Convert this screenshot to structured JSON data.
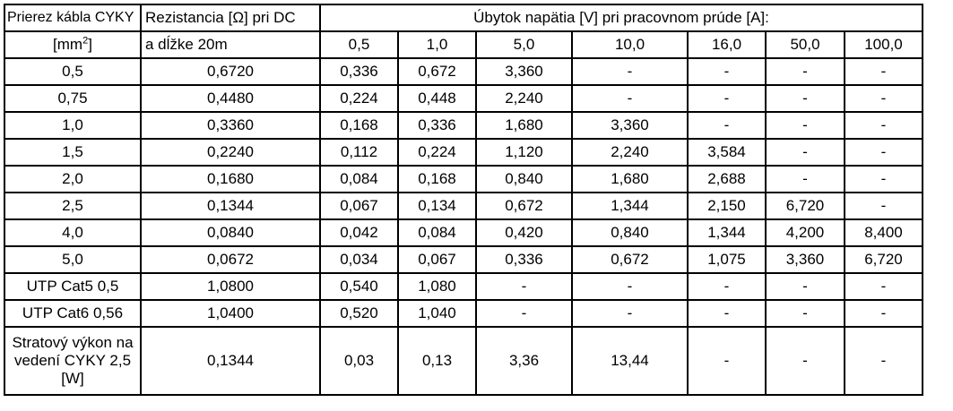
{
  "header": {
    "col1_line1": "Prierez kábla CYKY",
    "col1_line2_prefix": "[mm",
    "col1_line2_sup": "2",
    "col1_line2_suffix": "]",
    "col2_line1": "Rezistancia [Ω] pri DC",
    "col2_line2": "a dĺžke 20m",
    "group_title": "Úbytok napätia [V] pri pracovnom prúde [A]:",
    "currents": [
      "0,5",
      "1,0",
      "5,0",
      "10,0",
      "16,0",
      "50,0",
      "100,0"
    ]
  },
  "rows": [
    {
      "label": "0,5",
      "resistance": "0,6720",
      "values": [
        "0,336",
        "0,672",
        "3,360",
        "-",
        "-",
        "-",
        "-"
      ]
    },
    {
      "label": "0,75",
      "resistance": "0,4480",
      "values": [
        "0,224",
        "0,448",
        "2,240",
        "-",
        "-",
        "-",
        "-"
      ]
    },
    {
      "label": "1,0",
      "resistance": "0,3360",
      "values": [
        "0,168",
        "0,336",
        "1,680",
        "3,360",
        "-",
        "-",
        "-"
      ]
    },
    {
      "label": "1,5",
      "resistance": "0,2240",
      "values": [
        "0,112",
        "0,224",
        "1,120",
        "2,240",
        "3,584",
        "-",
        "-"
      ]
    },
    {
      "label": "2,0",
      "resistance": "0,1680",
      "values": [
        "0,084",
        "0,168",
        "0,840",
        "1,680",
        "2,688",
        "-",
        "-"
      ]
    },
    {
      "label": "2,5",
      "resistance": "0,1344",
      "values": [
        "0,067",
        "0,134",
        "0,672",
        "1,344",
        "2,150",
        "6,720",
        "-"
      ]
    },
    {
      "label": "4,0",
      "resistance": "0,0840",
      "values": [
        "0,042",
        "0,084",
        "0,420",
        "0,840",
        "1,344",
        "4,200",
        "8,400"
      ]
    },
    {
      "label": "5,0",
      "resistance": "0,0672",
      "values": [
        "0,034",
        "0,067",
        "0,336",
        "0,672",
        "1,075",
        "3,360",
        "6,720"
      ]
    },
    {
      "label": "UTP Cat5 0,5",
      "resistance": "1,0800",
      "values": [
        "0,540",
        "1,080",
        "-",
        "-",
        "-",
        "-",
        "-"
      ]
    },
    {
      "label": "UTP Cat6 0,56",
      "resistance": "1,0400",
      "values": [
        "0,520",
        "1,040",
        "-",
        "-",
        "-",
        "-",
        "-"
      ]
    }
  ],
  "last_row": {
    "label": "Stratový výkon na vedení CYKY 2,5 [W]",
    "resistance": "0,1344",
    "values": [
      "0,03",
      "0,13",
      "3,36",
      "13,44",
      "-",
      "-",
      "-"
    ]
  }
}
